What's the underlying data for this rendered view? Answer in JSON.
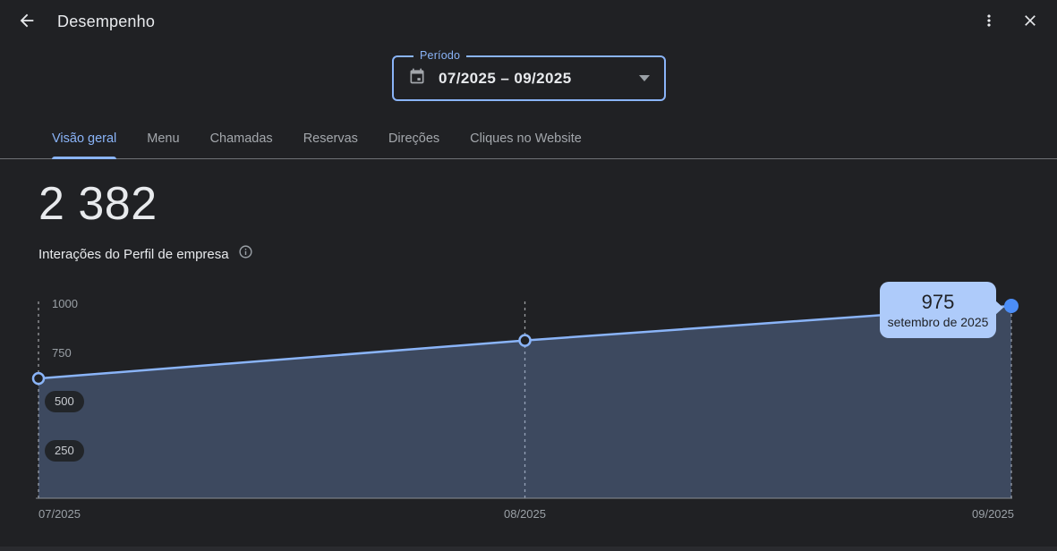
{
  "header": {
    "title": "Desempenho",
    "icons": {
      "back": "arrow-left",
      "more": "kebab-vertical",
      "close": "x"
    }
  },
  "period": {
    "label": "Período",
    "value": "07/2025 – 09/2025",
    "icons": {
      "field": "calendar",
      "dropdown": "caret-down"
    }
  },
  "tabs": [
    {
      "label": "Visão geral",
      "active": true
    },
    {
      "label": "Menu",
      "active": false
    },
    {
      "label": "Chamadas",
      "active": false
    },
    {
      "label": "Reservas",
      "active": false
    },
    {
      "label": "Direções",
      "active": false
    },
    {
      "label": "Cliques no Website",
      "active": false
    }
  ],
  "metric": {
    "value": "2 382",
    "label": "Interações do Perfil de empresa",
    "info_icon": "info-circle"
  },
  "chart_data": {
    "type": "area",
    "title": "Interações do Perfil de empresa",
    "x": [
      "07/2025",
      "08/2025",
      "09/2025"
    ],
    "series": [
      {
        "name": "Interações do Perfil de empresa",
        "values": [
          607,
          800,
          975
        ]
      }
    ],
    "yticks": [
      250,
      500,
      750,
      1000
    ],
    "ylim": [
      0,
      1030
    ],
    "grid": "vertical-dashed",
    "legend": "none",
    "highlight": {
      "x": "09/2025",
      "value": "975",
      "label": "setembro de 2025"
    },
    "colors": {
      "line": "#8ab4f8",
      "area": "rgba(138,180,248,0.28)",
      "marker_open_fill": "#202124",
      "marker_end": "#4c8df6",
      "tooltip_bg": "#aecbfa",
      "tooltip_text": "#1f2125",
      "axis_text": "#9aa0a6",
      "baseline": "#8a8f94",
      "dash": "#c3c6ca"
    }
  },
  "theme": {
    "background": "#202124",
    "accent": "#8ab4f8",
    "divider": "#6f7276"
  }
}
